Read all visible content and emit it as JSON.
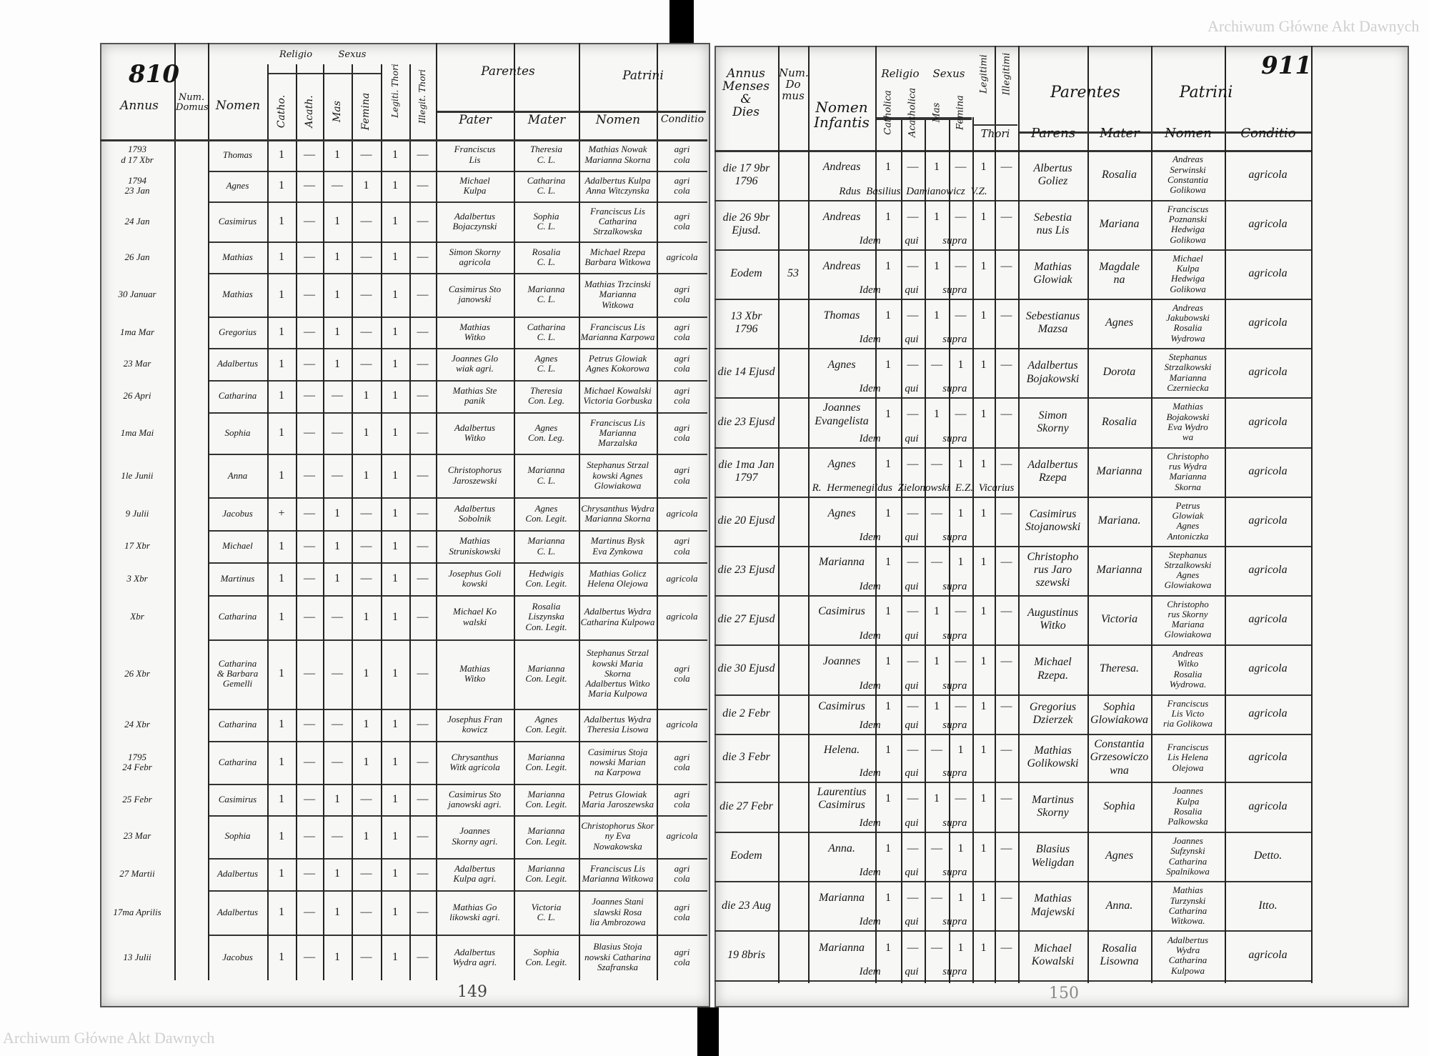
{
  "watermark": "Archiwum Główne Akt Dawnych",
  "left_page": {
    "page_number": "810",
    "folio_number": "149",
    "headers": {
      "annus": "Annus",
      "num_domus": "Num.\nDomus",
      "nomen": "Nomen",
      "religio": "Religio",
      "sexus": "Sexus",
      "catho": "Catho.",
      "acath": "Acath.",
      "mas": "Mas",
      "femina": "Femina",
      "legit": "Legiti. Thori",
      "illegit": "Illegit. Thori",
      "parentes": "Parentes",
      "patrini": "Patrini",
      "pater": "Pater",
      "mater": "Mater",
      "patrini_nomen": "Nomen",
      "conditio": "Conditio"
    },
    "rows": [
      {
        "date": "1793\nd 17 Xbr",
        "name": "Thomas",
        "marks": [
          "1",
          "—",
          "1",
          "—",
          "1",
          "—"
        ],
        "pater": "Franciscus\nLis",
        "mater": "Theresia\nC. L.",
        "patrini": "Mathias Nowak\nMarianna Skorna",
        "conditio": "agri\ncola"
      },
      {
        "date": "1794\n23 Jan",
        "name": "Agnes",
        "marks": [
          "1",
          "—",
          "—",
          "1",
          "1",
          "—"
        ],
        "pater": "Michael\nKulpa",
        "mater": "Catharina\nC. L.",
        "patrini": "Adalbertus Kulpa\nAnna Witczynska",
        "conditio": "agri\ncola"
      },
      {
        "date": "24 Jan",
        "name": "Casimirus",
        "marks": [
          "1",
          "—",
          "1",
          "—",
          "1",
          "—"
        ],
        "pater": "Adalbertus\nBojaczynski",
        "mater": "Sophia\nC. L.",
        "patrini": "Franciscus Lis\nCatharina Strzalkowska",
        "conditio": "agri\ncola"
      },
      {
        "date": "26 Jan",
        "name": "Mathias",
        "marks": [
          "1",
          "—",
          "1",
          "—",
          "1",
          "—"
        ],
        "pater": "Simon Skorny\nagricola",
        "mater": "Rosalia\nC. L.",
        "patrini": "Michael Rzepa\nBarbara Witkowa",
        "conditio": "agricola"
      },
      {
        "date": "30 Januar",
        "name": "Mathias",
        "marks": [
          "1",
          "—",
          "1",
          "—",
          "1",
          "—"
        ],
        "pater": "Casimirus Sto\njanowski",
        "mater": "Marianna\nC. L.",
        "patrini": "Mathias Trzcinski\nMarianna\nWitkowa",
        "conditio": "agri\ncola"
      },
      {
        "date": "1ma Mar",
        "name": "Gregorius",
        "marks": [
          "1",
          "—",
          "1",
          "—",
          "1",
          "—"
        ],
        "pater": "Mathias\nWitko",
        "mater": "Catharina\nC. L.",
        "patrini": "Franciscus Lis\nMarianna Karpowa",
        "conditio": "agri\ncola"
      },
      {
        "date": "23 Mar",
        "name": "Adalbertus",
        "marks": [
          "1",
          "—",
          "1",
          "—",
          "1",
          "—"
        ],
        "pater": "Joannes Glo\nwiak agri.",
        "mater": "Agnes\nC. L.",
        "patrini": "Petrus Glowiak\nAgnes Kokorowa",
        "conditio": "agri\ncola"
      },
      {
        "date": "26 Apri",
        "name": "Catharina",
        "marks": [
          "1",
          "—",
          "—",
          "1",
          "1",
          "—"
        ],
        "pater": "Mathias Ste\npanik",
        "mater": "Theresia\nCon. Leg.",
        "patrini": "Michael Kowalski\nVictoria Gorbuska",
        "conditio": "agri\ncola"
      },
      {
        "date": "1ma Mai",
        "name": "Sophia",
        "marks": [
          "1",
          "—",
          "—",
          "1",
          "1",
          "—"
        ],
        "pater": "Adalbertus\nWitko",
        "mater": "Agnes\nCon. Leg.",
        "patrini": "Franciscus Lis\nMarianna Marzalska",
        "conditio": "agri\ncola"
      },
      {
        "date": "1le Junii",
        "name": "Anna",
        "marks": [
          "1",
          "—",
          "—",
          "1",
          "1",
          "—"
        ],
        "pater": "Christophorus\nJaroszewski",
        "mater": "Marianna\nC. L.",
        "patrini": "Stephanus Strzal\nkowski Agnes\nGlowiakowa",
        "conditio": "agri\ncola"
      },
      {
        "date": "9 Julii",
        "name": "Jacobus",
        "marks": [
          "+",
          "—",
          "1",
          "—",
          "1",
          "—"
        ],
        "pater": "Adalbertus\nSobolnik",
        "mater": "Agnes\nCon. Legit.",
        "patrini": "Chrysanthus Wydra\nMarianna Skorna",
        "conditio": "agricola"
      },
      {
        "date": "17 Xbr",
        "name": "Michael",
        "marks": [
          "1",
          "—",
          "1",
          "—",
          "1",
          "—"
        ],
        "pater": "Mathias\nStruniskowski",
        "mater": "Marianna\nC. L.",
        "patrini": "Martinus Bysk\nEva Zynkowa",
        "conditio": "agri\ncola"
      },
      {
        "date": "3 Xbr",
        "name": "Martinus",
        "marks": [
          "1",
          "—",
          "1",
          "—",
          "1",
          "—"
        ],
        "pater": "Josephus Goli\nkowski",
        "mater": "Hedwigis\nCon. Legit.",
        "patrini": "Mathias Golicz\nHelena Olejowa",
        "conditio": "agricola"
      },
      {
        "date": "Xbr",
        "name": "Catharina",
        "marks": [
          "1",
          "—",
          "—",
          "1",
          "1",
          "—"
        ],
        "pater": "Michael Ko\nwalski",
        "mater": "Rosalia\nLiszynska\nCon. Legit.",
        "patrini": "Adalbertus Wydra\nCatharina Kulpowa",
        "conditio": "agricola"
      },
      {
        "date": "26 Xbr",
        "name": "Catharina\n& Barbara\nGemelli",
        "marks": [
          "1",
          "—",
          "—",
          "1",
          "1",
          "—"
        ],
        "pater": "Mathias\nWitko",
        "mater": "Marianna\nCon. Legit.",
        "patrini": "Stephanus Strzal\nkowski Maria Skorna\nAdalbertus Witko\nMaria Kulpowa",
        "conditio": "agri\ncola"
      },
      {
        "date": "24 Xbr",
        "name": "Catharina",
        "marks": [
          "1",
          "—",
          "—",
          "1",
          "1",
          "—"
        ],
        "pater": "Josephus Fran\nkowicz",
        "mater": "Agnes\nCon. Legit.",
        "patrini": "Adalbertus Wydra\nTheresia Lisowa",
        "conditio": "agricola"
      },
      {
        "date": "1795\n24 Febr",
        "name": "Catharina",
        "marks": [
          "1",
          "—",
          "—",
          "1",
          "1",
          "—"
        ],
        "pater": "Chrysanthus\nWitk agricola",
        "mater": "Marianna\nCon. Legit.",
        "patrini": "Casimirus Stoja\nnowski Marian\nna Karpowa",
        "conditio": "agri\ncola"
      },
      {
        "date": "25 Febr",
        "name": "Casimirus",
        "marks": [
          "1",
          "—",
          "1",
          "—",
          "1",
          "—"
        ],
        "pater": "Casimirus Sto\njanowski agri.",
        "mater": "Marianna\nCon. Legit.",
        "patrini": "Petrus Glowiak\nMaria Jaroszewska",
        "conditio": "agri\ncola"
      },
      {
        "date": "23 Mar",
        "name": "Sophia",
        "marks": [
          "1",
          "—",
          "—",
          "1",
          "1",
          "—"
        ],
        "pater": "Joannes\nSkorny agri.",
        "mater": "Marianna\nCon. Legit.",
        "patrini": "Christophorus Skor\nny Eva Nowakowska",
        "conditio": "agricola"
      },
      {
        "date": "27 Martii",
        "name": "Adalbertus",
        "marks": [
          "1",
          "—",
          "1",
          "—",
          "1",
          "—"
        ],
        "pater": "Adalbertus\nKulpa agri.",
        "mater": "Marianna\nCon. Legit.",
        "patrini": "Franciscus Lis\nMarianna Witkowa",
        "conditio": "agri\ncola"
      },
      {
        "date": "17ma Aprilis",
        "name": "Adalbertus",
        "marks": [
          "1",
          "—",
          "1",
          "—",
          "1",
          "—"
        ],
        "pater": "Mathias Go\nlikowski agri.",
        "mater": "Victoria\nC. L.",
        "patrini": "Joannes Stani\nslawski Rosa\nlia Ambrozowa",
        "conditio": "agri\ncola"
      },
      {
        "date": "13 Julii",
        "name": "Jacobus",
        "marks": [
          "1",
          "—",
          "1",
          "—",
          "1",
          "—"
        ],
        "pater": "Adalbertus\nWydra agri.",
        "mater": "Sophia\nCon. Legit.",
        "patrini": "Blasius Stoja\nnowski Catharina\nSzafranska",
        "conditio": "agri\ncola"
      }
    ]
  },
  "right_page": {
    "page_number": "911",
    "folio_number": "150",
    "headers": {
      "annus": "Annus\nMenses\n&\nDies",
      "num_domus": "Num.\nDo\nmus",
      "nomen": "Nomen\nInfantis",
      "religio": "Religio",
      "sexus": "Sexus",
      "catholica": "Catholica",
      "acatholica": "Acatholica",
      "mas": "Mas",
      "femina": "Femina",
      "legitimi": "Legitimi",
      "illegitimi": "Illegitimi",
      "thori": "Thori",
      "parentes": "Parentes",
      "patrini": "Patrini",
      "parens": "Parens",
      "mater": "Mater",
      "patrini_nomen": "Nomen",
      "conditio": "Conditio"
    },
    "rows": [
      {
        "date": "die 17 9br\n1796",
        "domus": "",
        "name": "Andreas",
        "marks": [
          "1",
          "—",
          "1",
          "—",
          "1",
          "—"
        ],
        "note": "Rdus Basilius Damianowicz V.Z.",
        "parens": "Albertus\nGoliez",
        "mater": "Rosalia",
        "patrini": "Andreas\nSerwinski\nConstantia\nGolikowa",
        "conditio": "agricola"
      },
      {
        "date": "die 26 9br\nEjusd.",
        "domus": "",
        "name": "Andreas",
        "marks": [
          "1",
          "—",
          "1",
          "—",
          "1",
          "—"
        ],
        "note": "Idem qui supra",
        "parens": "Sebestia\nnus Lis",
        "mater": "Mariana",
        "patrini": "Franciscus\nPoznanski\nHedwiga\nGolikowa",
        "conditio": "agricola"
      },
      {
        "date": "Eodem",
        "domus": "53",
        "name": "Andreas",
        "marks": [
          "1",
          "—",
          "1",
          "—",
          "1",
          "—"
        ],
        "note": "Idem qui supra",
        "parens": "Mathias\nGlowiak",
        "mater": "Magdale\nna",
        "patrini": "Michael\nKulpa\nHedwiga\nGolikowa",
        "conditio": "agricola"
      },
      {
        "date": "13 Xbr\n1796",
        "domus": "",
        "name": "Thomas",
        "marks": [
          "1",
          "—",
          "1",
          "—",
          "1",
          "—"
        ],
        "note": "Idem qui supra",
        "parens": "Sebestianus\nMazsa",
        "mater": "Agnes",
        "patrini": "Andreas\nJakubowski\nRosalia\nWydrowa",
        "conditio": "agricola"
      },
      {
        "date": "die 14 Ejusd",
        "domus": "",
        "name": "Agnes",
        "marks": [
          "1",
          "—",
          "—",
          "1",
          "1",
          "—"
        ],
        "note": "Idem qui supra",
        "parens": "Adalbertus\nBojakowski",
        "mater": "Dorota",
        "patrini": "Stephanus\nStrzalkowski\nMarianna\nCzerniecka",
        "conditio": "agricola"
      },
      {
        "date": "die 23 Ejusd",
        "domus": "",
        "name": "Joannes\nEvangelista",
        "marks": [
          "1",
          "—",
          "1",
          "—",
          "1",
          "—"
        ],
        "note": "Idem qui supra",
        "parens": "Simon\nSkorny",
        "mater": "Rosalia",
        "patrini": "Mathias\nBojakowski\nEva Wydro\nwa",
        "conditio": "agricola"
      },
      {
        "date": "die 1ma Jan\n1797",
        "domus": "",
        "name": "Agnes",
        "marks": [
          "1",
          "—",
          "—",
          "1",
          "1",
          "—"
        ],
        "note": "R. Hermenegildus Zielonowski E.Z. Vicarius",
        "parens": "Adalbertus\nRzepa",
        "mater": "Marianna",
        "patrini": "Christopho\nrus Wydra\nMarianna\nSkorna",
        "conditio": "agricola"
      },
      {
        "date": "die 20 Ejusd",
        "domus": "",
        "name": "Agnes",
        "marks": [
          "1",
          "—",
          "—",
          "1",
          "1",
          "—"
        ],
        "note": "Idem qui supra",
        "parens": "Casimirus\nStojanowski",
        "mater": "Mariana.",
        "patrini": "Petrus\nGlowiak\nAgnes\nAntoniczka",
        "conditio": "agricola"
      },
      {
        "date": "die 23 Ejusd",
        "domus": "",
        "name": "Marianna",
        "marks": [
          "1",
          "—",
          "—",
          "1",
          "1",
          "—"
        ],
        "note": "Idem qui supra",
        "parens": "Christopho\nrus Jaro\nszewski",
        "mater": "Marianna",
        "patrini": "Stephanus\nStrzalkowski\nAgnes\nGlowiakowa",
        "conditio": "agricola"
      },
      {
        "date": "die 27 Ejusd",
        "domus": "",
        "name": "Casimirus",
        "marks": [
          "1",
          "—",
          "1",
          "—",
          "1",
          "—"
        ],
        "note": "Idem qui supra",
        "parens": "Augustinus\nWitko",
        "mater": "Victoria",
        "patrini": "Christopho\nrus Skorny\nMariana\nGlowiakowa",
        "conditio": "agricola"
      },
      {
        "date": "die 30 Ejusd",
        "domus": "",
        "name": "Joannes",
        "marks": [
          "1",
          "—",
          "1",
          "—",
          "1",
          "—"
        ],
        "note": "Idem qui supra",
        "parens": "Michael\nRzepa.",
        "mater": "Theresa.",
        "patrini": "Andreas\nWitko\nRosalia\nWydrowa.",
        "conditio": "agricola"
      },
      {
        "date": "die 2 Febr",
        "domus": "",
        "name": "Casimirus",
        "marks": [
          "1",
          "—",
          "1",
          "—",
          "1",
          "—"
        ],
        "note": "Idem qui supra",
        "parens": "Gregorius\nDzierzek",
        "mater": "Sophia\nGlowiakowa",
        "patrini": "Franciscus\nLis Victo\nria Golikowa",
        "conditio": "agricola"
      },
      {
        "date": "die 3 Febr",
        "domus": "",
        "name": "Helena.",
        "marks": [
          "1",
          "—",
          "—",
          "1",
          "1",
          "—"
        ],
        "note": "Idem qui supra",
        "parens": "Mathias\nGolikowski",
        "mater": "Constantia\nGrzesowiczowna",
        "patrini": "Franciscus\nLis Helena\nOlejowa",
        "conditio": "agricola"
      },
      {
        "date": "die 27 Febr",
        "domus": "",
        "name": "Laurentius\nCasimirus",
        "marks": [
          "1",
          "—",
          "1",
          "—",
          "1",
          "—"
        ],
        "note": "Idem qui supra",
        "parens": "Martinus\nSkorny",
        "mater": "Sophia",
        "patrini": "Joannes\nKulpa\nRosalia\nPalkowska",
        "conditio": "agricola"
      },
      {
        "date": "Eodem",
        "domus": "",
        "name": "Anna.",
        "marks": [
          "1",
          "—",
          "—",
          "1",
          "1",
          "—"
        ],
        "note": "Idem qui supra",
        "parens": "Blasius\nWeligdan",
        "mater": "Agnes",
        "patrini": "Joannes\nSufzynski\nCatharina\nSpalnikowa",
        "conditio": "Detto."
      },
      {
        "date": "die 23 Aug",
        "domus": "",
        "name": "Marianna",
        "marks": [
          "1",
          "—",
          "—",
          "1",
          "1",
          "—"
        ],
        "note": "Idem qui supra",
        "parens": "Mathias\nMajewski",
        "mater": "Anna.",
        "patrini": "Mathias\nTurzynski\nCatharina\nWitkowa.",
        "conditio": "Itto."
      },
      {
        "date": "19 8bris",
        "domus": "",
        "name": "Marianna",
        "marks": [
          "1",
          "—",
          "—",
          "1",
          "1",
          "—"
        ],
        "note": "Idem qui supra",
        "parens": "Michael\nKowalski",
        "mater": "Rosalia\nLisowna",
        "patrini": "Adalbertus\nWydra\nCatharina\nKulpowa",
        "conditio": "agricola"
      }
    ]
  },
  "colors": {
    "ink": "#151515",
    "paper": "#f7f7f5",
    "spine": "#000000",
    "watermark": "#cfcfcf"
  }
}
